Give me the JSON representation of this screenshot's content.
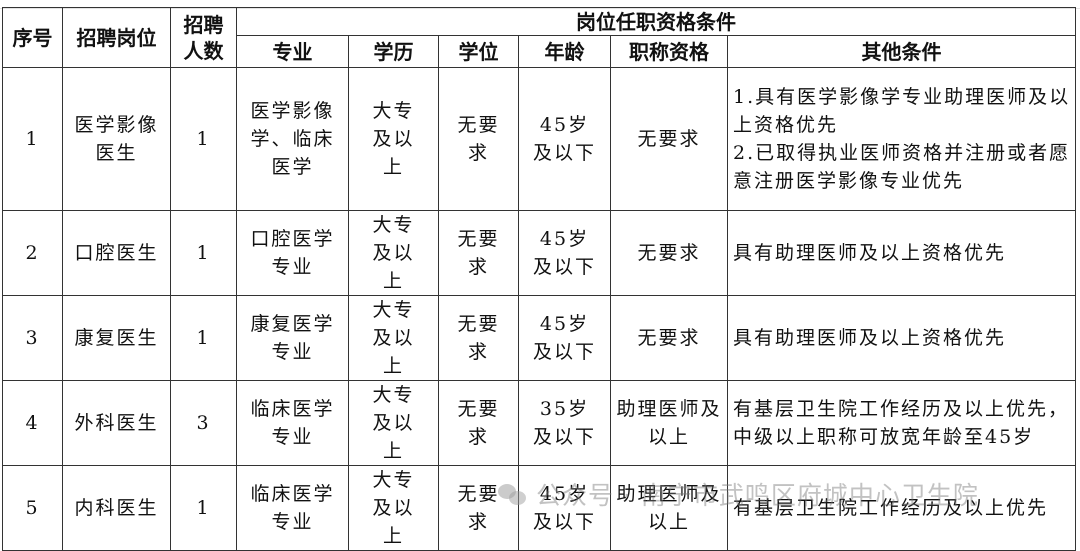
{
  "headers": {
    "seq": "序号",
    "position": "招聘岗位",
    "count": "招聘人数",
    "qualifications": "岗位任职资格条件",
    "major": "专业",
    "education": "学历",
    "degree": "学位",
    "age": "年龄",
    "title": "职称资格",
    "other": "其他条件"
  },
  "rows": [
    {
      "seq": "1",
      "position": "医学影像医生",
      "count": "1",
      "major": "医学影像学、临床医学",
      "education": "大专及以上",
      "degree": "无要求",
      "age": "45岁及以下",
      "title": "无要求",
      "other": "1.具有医学影像学专业助理医师及以上资格优先\n2.已取得执业医师资格并注册或者愿意注册医学影像专业优先"
    },
    {
      "seq": "2",
      "position": "口腔医生",
      "count": "1",
      "major": "口腔医学专业",
      "education": "大专及以上",
      "degree": "无要求",
      "age": "45岁及以下",
      "title": "无要求",
      "other": "具有助理医师及以上资格优先"
    },
    {
      "seq": "3",
      "position": "康复医生",
      "count": "1",
      "major": "康复医学专业",
      "education": "大专及以上",
      "degree": "无要求",
      "age": "45岁及以下",
      "title": "无要求",
      "other": "具有助理医师及以上资格优先"
    },
    {
      "seq": "4",
      "position": "外科医生",
      "count": "3",
      "major": "临床医学专业",
      "education": "大专及以上",
      "degree": "无要求",
      "age": "35岁及以下",
      "title": "助理医师及以上",
      "other": "有基层卫生院工作经历及以上优先，中级以上职称可放宽年龄至45岁"
    },
    {
      "seq": "5",
      "position": "内科医生",
      "count": "1",
      "major": "临床医学专业",
      "education": "大专及以上",
      "degree": "无要求",
      "age": "45岁及以下",
      "title": "助理医师及以上",
      "other": "有基层卫生院工作经历及以上优先"
    }
  ],
  "watermark": "公众号 · 南宁市武鸣区府城中心卫生院"
}
